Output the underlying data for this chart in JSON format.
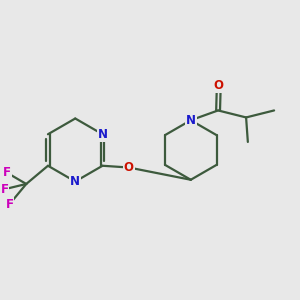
{
  "background_color": "#e8e8e8",
  "bond_color": "#3d5a3d",
  "bond_width": 1.6,
  "atom_colors": {
    "N": "#1a1acc",
    "O": "#cc1100",
    "F": "#cc00bb",
    "C": "#000000"
  },
  "font_size_atom": 8.5,
  "fig_size": [
    3.0,
    3.0
  ],
  "dpi": 100
}
